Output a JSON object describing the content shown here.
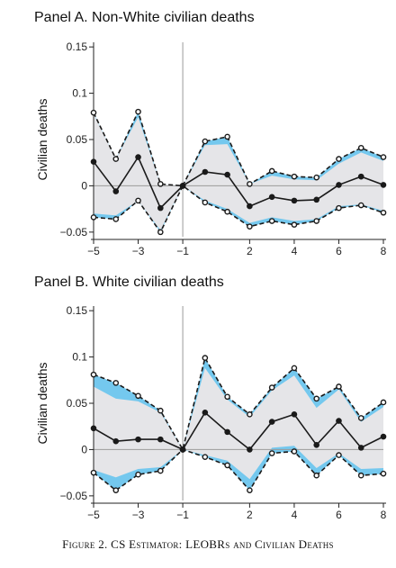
{
  "caption": "Figure 2. CS Estimator: LEOBRs and Civilian Deaths",
  "chart_data": [
    {
      "type": "line",
      "title": "Panel A. Non-White civilian deaths",
      "ylabel": "Civilian deaths",
      "xlabel": "",
      "x": [
        -5,
        -4,
        -3,
        -2,
        -1,
        0,
        1,
        2,
        3,
        4,
        5,
        6,
        7,
        8
      ],
      "xticks": [
        -5,
        -3,
        -1,
        2,
        4,
        6,
        8
      ],
      "xlim": [
        -5,
        8
      ],
      "ylim": [
        -0.055,
        0.155
      ],
      "yticks": [
        -0.05,
        0,
        0.05,
        0.1,
        0.15
      ],
      "ytick_labels": [
        "−0.05",
        "0",
        "0.05",
        "0.1",
        "0.15"
      ],
      "reference_lines": {
        "x": -1,
        "y": 0
      },
      "series": [
        {
          "role": "point_estimate",
          "values": [
            0.026,
            -0.006,
            0.031,
            -0.024,
            0.0,
            0.015,
            0.012,
            -0.022,
            -0.012,
            -0.016,
            -0.015,
            0.001,
            0.01,
            0.001
          ]
        },
        {
          "role": "uniform_upper",
          "values": [
            0.079,
            0.029,
            0.08,
            0.002,
            0.0,
            0.048,
            0.053,
            0.002,
            0.016,
            0.01,
            0.009,
            0.029,
            0.041,
            0.031
          ]
        },
        {
          "role": "uniform_lower",
          "values": [
            -0.034,
            -0.036,
            -0.016,
            -0.05,
            0.0,
            -0.018,
            -0.028,
            -0.044,
            -0.038,
            -0.042,
            -0.038,
            -0.024,
            -0.021,
            -0.029
          ]
        },
        {
          "role": "pointwise_upper",
          "values": [
            0.078,
            0.029,
            0.074,
            0.002,
            0.0,
            0.044,
            0.045,
            0.002,
            0.011,
            0.007,
            0.006,
            0.024,
            0.036,
            0.027
          ]
        },
        {
          "role": "pointwise_lower",
          "values": [
            -0.03,
            -0.032,
            -0.016,
            -0.048,
            0.0,
            -0.016,
            -0.025,
            -0.04,
            -0.034,
            -0.038,
            -0.036,
            -0.022,
            -0.02,
            -0.027
          ]
        }
      ],
      "colors": {
        "uniform_band": "#74c8ee",
        "pointwise_band": "#e5e5e8",
        "lines": "#1a1a1a"
      }
    },
    {
      "type": "line",
      "title": "Panel B. White civilian deaths",
      "ylabel": "Civilian deaths",
      "xlabel": "",
      "x": [
        -5,
        -4,
        -3,
        -2,
        -1,
        0,
        1,
        2,
        3,
        4,
        5,
        6,
        7,
        8
      ],
      "xticks": [
        -5,
        -3,
        -1,
        2,
        4,
        6,
        8
      ],
      "xlim": [
        -5,
        8
      ],
      "ylim": [
        -0.055,
        0.155
      ],
      "yticks": [
        -0.05,
        0,
        0.05,
        0.1,
        0.15
      ],
      "ytick_labels": [
        "−0.05",
        "0",
        "0.05",
        "0.1",
        "0.15"
      ],
      "reference_lines": {
        "x": -1,
        "y": 0
      },
      "series": [
        {
          "role": "point_estimate",
          "values": [
            0.023,
            0.009,
            0.011,
            0.011,
            0.0,
            0.04,
            0.019,
            0.0,
            0.03,
            0.038,
            0.005,
            0.031,
            0.002,
            0.014
          ]
        },
        {
          "role": "uniform_upper",
          "values": [
            0.081,
            0.072,
            0.058,
            0.042,
            0.0,
            0.099,
            0.057,
            0.038,
            0.067,
            0.088,
            0.055,
            0.068,
            0.034,
            0.051
          ]
        },
        {
          "role": "uniform_lower",
          "values": [
            -0.025,
            -0.044,
            -0.027,
            -0.023,
            0.0,
            -0.008,
            -0.017,
            -0.044,
            -0.004,
            -0.002,
            -0.028,
            -0.006,
            -0.028,
            -0.026
          ]
        },
        {
          "role": "pointwise_upper",
          "values": [
            0.068,
            0.055,
            0.052,
            0.04,
            0.0,
            0.088,
            0.054,
            0.035,
            0.064,
            0.08,
            0.045,
            0.065,
            0.03,
            0.046
          ]
        },
        {
          "role": "pointwise_lower",
          "values": [
            -0.022,
            -0.03,
            -0.021,
            -0.019,
            0.0,
            -0.006,
            -0.012,
            -0.032,
            0.002,
            0.004,
            -0.02,
            -0.004,
            -0.021,
            -0.02
          ]
        }
      ],
      "colors": {
        "uniform_band": "#74c8ee",
        "pointwise_band": "#e5e5e8",
        "lines": "#1a1a1a"
      }
    }
  ]
}
